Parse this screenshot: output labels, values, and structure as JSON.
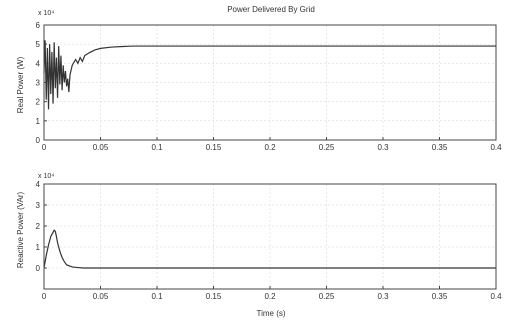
{
  "chart_data": [
    {
      "type": "line",
      "title": "Power Delivered By Grid",
      "xlabel": "",
      "ylabel": "Real Power (W)",
      "exponent_label": "x 10⁴",
      "xlim": [
        0,
        0.4
      ],
      "ylim": [
        0,
        6
      ],
      "x_ticks": [
        "0",
        "0.05",
        "0.1",
        "0.15",
        "0.2",
        "0.25",
        "0.3",
        "0.35",
        "0.4"
      ],
      "y_ticks": [
        "0",
        "1",
        "2",
        "3",
        "4",
        "5",
        "6"
      ],
      "series": [
        {
          "color": "#333333",
          "points": [
            [
              0.0,
              3.5
            ],
            [
              0.001,
              5.2
            ],
            [
              0.002,
              2.1
            ],
            [
              0.003,
              4.8
            ],
            [
              0.004,
              1.6
            ],
            [
              0.005,
              5.0
            ],
            [
              0.006,
              2.4
            ],
            [
              0.007,
              4.6
            ],
            [
              0.008,
              1.9
            ],
            [
              0.009,
              5.1
            ],
            [
              0.01,
              2.7
            ],
            [
              0.011,
              4.3
            ],
            [
              0.012,
              2.2
            ],
            [
              0.013,
              4.9
            ],
            [
              0.014,
              2.9
            ],
            [
              0.015,
              4.4
            ],
            [
              0.016,
              2.6
            ],
            [
              0.017,
              3.9
            ],
            [
              0.018,
              3.0
            ],
            [
              0.019,
              3.6
            ],
            [
              0.02,
              2.8
            ],
            [
              0.021,
              3.2
            ],
            [
              0.022,
              2.5
            ],
            [
              0.023,
              3.4
            ],
            [
              0.025,
              3.9
            ],
            [
              0.028,
              4.2
            ],
            [
              0.03,
              4.0
            ],
            [
              0.032,
              4.3
            ],
            [
              0.034,
              4.1
            ],
            [
              0.036,
              4.4
            ],
            [
              0.04,
              4.55
            ],
            [
              0.045,
              4.7
            ],
            [
              0.05,
              4.78
            ],
            [
              0.06,
              4.85
            ],
            [
              0.07,
              4.88
            ],
            [
              0.08,
              4.9
            ],
            [
              0.1,
              4.9
            ],
            [
              0.15,
              4.9
            ],
            [
              0.2,
              4.9
            ],
            [
              0.25,
              4.9
            ],
            [
              0.3,
              4.9
            ],
            [
              0.35,
              4.9
            ],
            [
              0.4,
              4.9
            ]
          ]
        }
      ]
    },
    {
      "type": "line",
      "title": "",
      "xlabel": "Time (s)",
      "ylabel": "Reactive Power (VAr)",
      "exponent_label": "x 10⁴",
      "xlim": [
        0,
        0.4
      ],
      "ylim": [
        -1,
        4
      ],
      "x_ticks": [
        "0",
        "0.05",
        "0.1",
        "0.15",
        "0.2",
        "0.25",
        "0.3",
        "0.35",
        "0.4"
      ],
      "y_ticks": [
        "0",
        "1",
        "2",
        "3",
        "4"
      ],
      "series": [
        {
          "color": "#333333",
          "points": [
            [
              0.0,
              0.0
            ],
            [
              0.002,
              0.6
            ],
            [
              0.004,
              1.1
            ],
            [
              0.006,
              1.5
            ],
            [
              0.008,
              1.7
            ],
            [
              0.009,
              1.8
            ],
            [
              0.01,
              1.75
            ],
            [
              0.011,
              1.5
            ],
            [
              0.012,
              1.2
            ],
            [
              0.014,
              0.8
            ],
            [
              0.016,
              0.5
            ],
            [
              0.018,
              0.3
            ],
            [
              0.02,
              0.15
            ],
            [
              0.025,
              0.05
            ],
            [
              0.03,
              0.02
            ],
            [
              0.035,
              0.0
            ],
            [
              0.04,
              0.0
            ],
            [
              0.1,
              0.0
            ],
            [
              0.2,
              0.0
            ],
            [
              0.3,
              0.0
            ],
            [
              0.4,
              0.0
            ]
          ]
        }
      ]
    }
  ]
}
